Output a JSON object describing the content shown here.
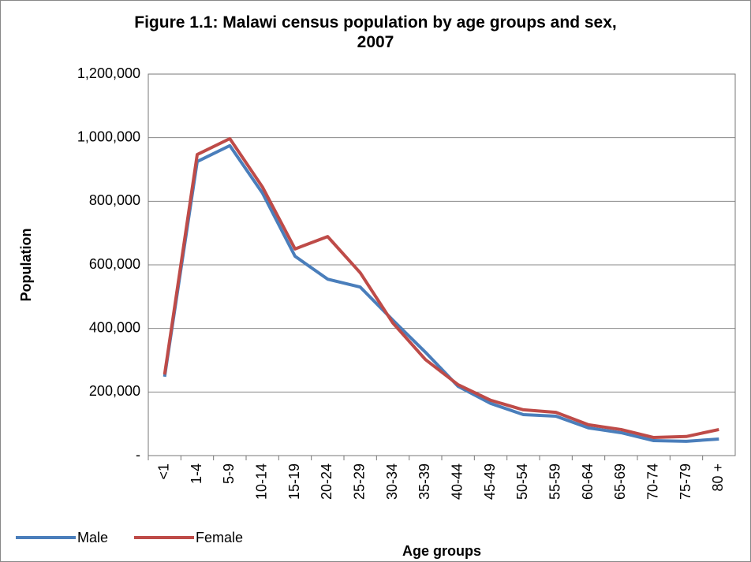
{
  "chart_data": {
    "type": "line",
    "title": "Figure 1.1: Malawi census population by age groups and sex, 2007",
    "x_label": "Age groups",
    "y_label": "Population",
    "categories": [
      "<1",
      "1-4",
      "5-9",
      "10-14",
      "15-19",
      "20-24",
      "25-29",
      "30-34",
      "35-39",
      "40-44",
      "45-49",
      "50-54",
      "55-59",
      "60-64",
      "65-69",
      "70-74",
      "75-79",
      "80 +"
    ],
    "series": [
      {
        "name": "Male",
        "color": "#4a7ebb",
        "values": [
          248000,
          925000,
          975000,
          826000,
          627000,
          555000,
          530000,
          426000,
          325000,
          218000,
          164000,
          129000,
          124000,
          87000,
          72000,
          47000,
          45000,
          52000
        ]
      },
      {
        "name": "Female",
        "color": "#be4b48",
        "values": [
          255000,
          947000,
          997000,
          845000,
          650000,
          689000,
          575000,
          417000,
          302000,
          223000,
          174000,
          144000,
          136000,
          97000,
          82000,
          57000,
          60000,
          82000
        ]
      }
    ],
    "ylim": [
      0,
      1200000
    ],
    "yticks": [
      {
        "value": 0,
        "label": "-"
      },
      {
        "value": 200000,
        "label": "200,000"
      },
      {
        "value": 400000,
        "label": "400,000"
      },
      {
        "value": 600000,
        "label": "600,000"
      },
      {
        "value": 800000,
        "label": "800,000"
      },
      {
        "value": 1000000,
        "label": "1,000,000"
      },
      {
        "value": 1200000,
        "label": "1,200,000"
      }
    ],
    "grid": true,
    "legend": "bottom-left"
  }
}
